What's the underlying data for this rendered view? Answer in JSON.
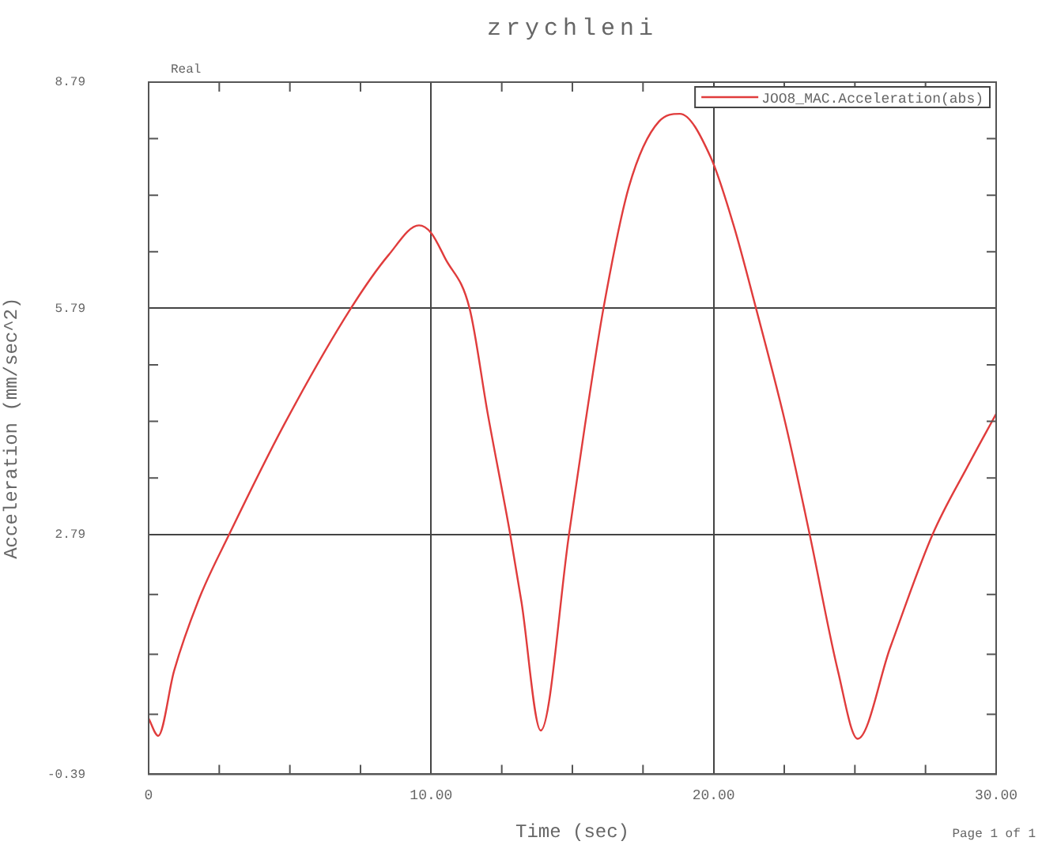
{
  "chart_data": {
    "type": "line",
    "title": "zrychleni",
    "xlabel": "Time (sec)",
    "ylabel": "Acceleration (mm/sec^2)",
    "annotations": [
      "Real",
      "Page 1 of 1"
    ],
    "x": [
      0,
      0.34,
      0.9,
      1.8,
      2.85,
      4.8,
      7.16,
      8.5,
      9.57,
      10,
      10.5,
      11.36,
      12.0,
      12.8,
      13.2,
      13.88,
      14.88,
      15.45,
      16.1,
      17.0,
      18.07,
      18.8,
      19.9,
      20.7,
      21.5,
      22.55,
      23.4,
      24.4,
      25.1,
      26.25,
      27.75,
      29.0,
      30
    ],
    "series": [
      {
        "name": "JOO8_MAC.Acceleration(abs)",
        "color": "#e03c3c",
        "values": [
          0.35,
          0.12,
          0.98,
          1.95,
          2.79,
          4.25,
          5.79,
          6.5,
          6.89,
          6.79,
          6.45,
          5.79,
          4.4,
          2.79,
          1.89,
          0.19,
          2.79,
          4.25,
          5.79,
          7.4,
          8.27,
          8.37,
          7.79,
          6.9,
          5.79,
          4.25,
          2.79,
          0.98,
          0.08,
          1.29,
          2.79,
          3.7,
          4.39
        ]
      }
    ],
    "xlim": [
      0,
      30
    ],
    "xticks": [
      0,
      {
        "value": 10,
        "label": "10.00"
      },
      {
        "value": 20,
        "label": "20.00"
      },
      {
        "value": 30,
        "label": "30.00"
      }
    ],
    "ylim": [
      -0.39,
      8.79
    ],
    "yticks": [
      -0.39,
      2.79,
      5.79,
      8.79
    ],
    "grid": true,
    "legend": "top right",
    "marker": "none",
    "line_style": "solid"
  }
}
